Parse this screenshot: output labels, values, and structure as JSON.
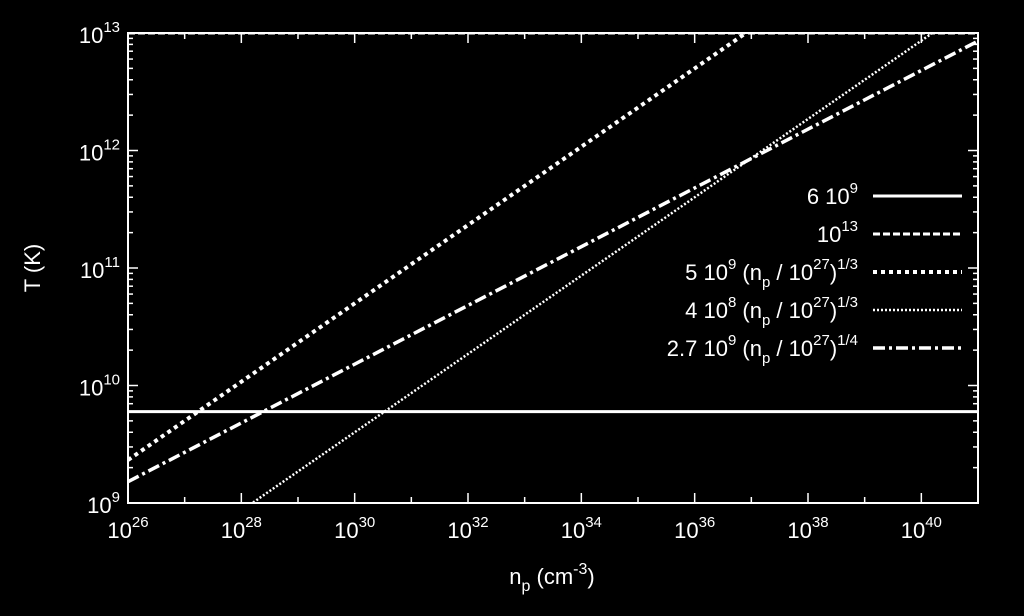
{
  "chart_data": {
    "type": "line",
    "xlabel": "n_p (cm^-3)",
    "ylabel": "T (K)",
    "x_scale": "log",
    "y_scale": "log",
    "xlim": [
      1e+26,
      1e+41
    ],
    "ylim": [
      1000000000.0,
      10000000000000.0
    ],
    "grid": false,
    "legend_position": "right",
    "x_ticks": [
      {
        "exp": 26,
        "label": "10",
        "sup": "26"
      },
      {
        "exp": 28,
        "label": "10",
        "sup": "28"
      },
      {
        "exp": 30,
        "label": "10",
        "sup": "30"
      },
      {
        "exp": 32,
        "label": "10",
        "sup": "32"
      },
      {
        "exp": 34,
        "label": "10",
        "sup": "34"
      },
      {
        "exp": 36,
        "label": "10",
        "sup": "36"
      },
      {
        "exp": 38,
        "label": "10",
        "sup": "38"
      },
      {
        "exp": 40,
        "label": "10",
        "sup": "40"
      }
    ],
    "y_ticks": [
      {
        "exp": 9,
        "label": "10",
        "sup": "9"
      },
      {
        "exp": 10,
        "label": "10",
        "sup": "10"
      },
      {
        "exp": 11,
        "label": "10",
        "sup": "11"
      },
      {
        "exp": 12,
        "label": "10",
        "sup": "12"
      },
      {
        "exp": 13,
        "label": "10",
        "sup": "13"
      }
    ],
    "series": [
      {
        "name": "6 10^9",
        "style": "solid",
        "coef": 6000000000.0,
        "power": 0,
        "color": "#ffffff"
      },
      {
        "name": "10^13",
        "style": "dashed",
        "coef": 10000000000000.0,
        "power": 0,
        "color": "#ffffff"
      },
      {
        "name": "5 10^9 (n_p / 10^27)^1/3",
        "style": "short-dotted",
        "coef": 5000000000.0,
        "power": 0.3333,
        "color": "#ffffff"
      },
      {
        "name": "4 10^8 (n_p / 10^27)^1/3",
        "style": "fine-dotted",
        "coef": 400000000.0,
        "power": 0.3333,
        "color": "#ffffff"
      },
      {
        "name": "2.7 10^9 (n_p / 10^27)^1/4",
        "style": "dash-dot",
        "coef": 2700000000.0,
        "power": 0.25,
        "color": "#ffffff"
      }
    ]
  },
  "labels": {
    "xlabel_main": "n",
    "xlabel_sub": "p",
    "xlabel_tail": " (cm",
    "xlabel_sup": "-3",
    "xlabel_close": ")",
    "ylabel": "T (K)"
  },
  "legend": [
    {
      "parts": [
        {
          "t": "6 10"
        },
        {
          "t": "9",
          "sup": true
        }
      ]
    },
    {
      "parts": [
        {
          "t": "10"
        },
        {
          "t": "13",
          "sup": true
        }
      ]
    },
    {
      "parts": [
        {
          "t": "5 10"
        },
        {
          "t": "9",
          "sup": true
        },
        {
          "t": " (n"
        },
        {
          "t": "p",
          "sub": true
        },
        {
          "t": " / 10"
        },
        {
          "t": "27",
          "sup": true
        },
        {
          "t": ")"
        },
        {
          "t": "1/3",
          "sup": true
        }
      ]
    },
    {
      "parts": [
        {
          "t": "4 10"
        },
        {
          "t": "8",
          "sup": true
        },
        {
          "t": " (n"
        },
        {
          "t": "p",
          "sub": true
        },
        {
          "t": " / 10"
        },
        {
          "t": "27",
          "sup": true
        },
        {
          "t": ")"
        },
        {
          "t": "1/3",
          "sup": true
        }
      ]
    },
    {
      "parts": [
        {
          "t": "2.7 10"
        },
        {
          "t": "9",
          "sup": true
        },
        {
          "t": " (n"
        },
        {
          "t": "p",
          "sub": true
        },
        {
          "t": " / 10"
        },
        {
          "t": "27",
          "sup": true
        },
        {
          "t": ")"
        },
        {
          "t": "1/4",
          "sup": true
        }
      ]
    }
  ]
}
